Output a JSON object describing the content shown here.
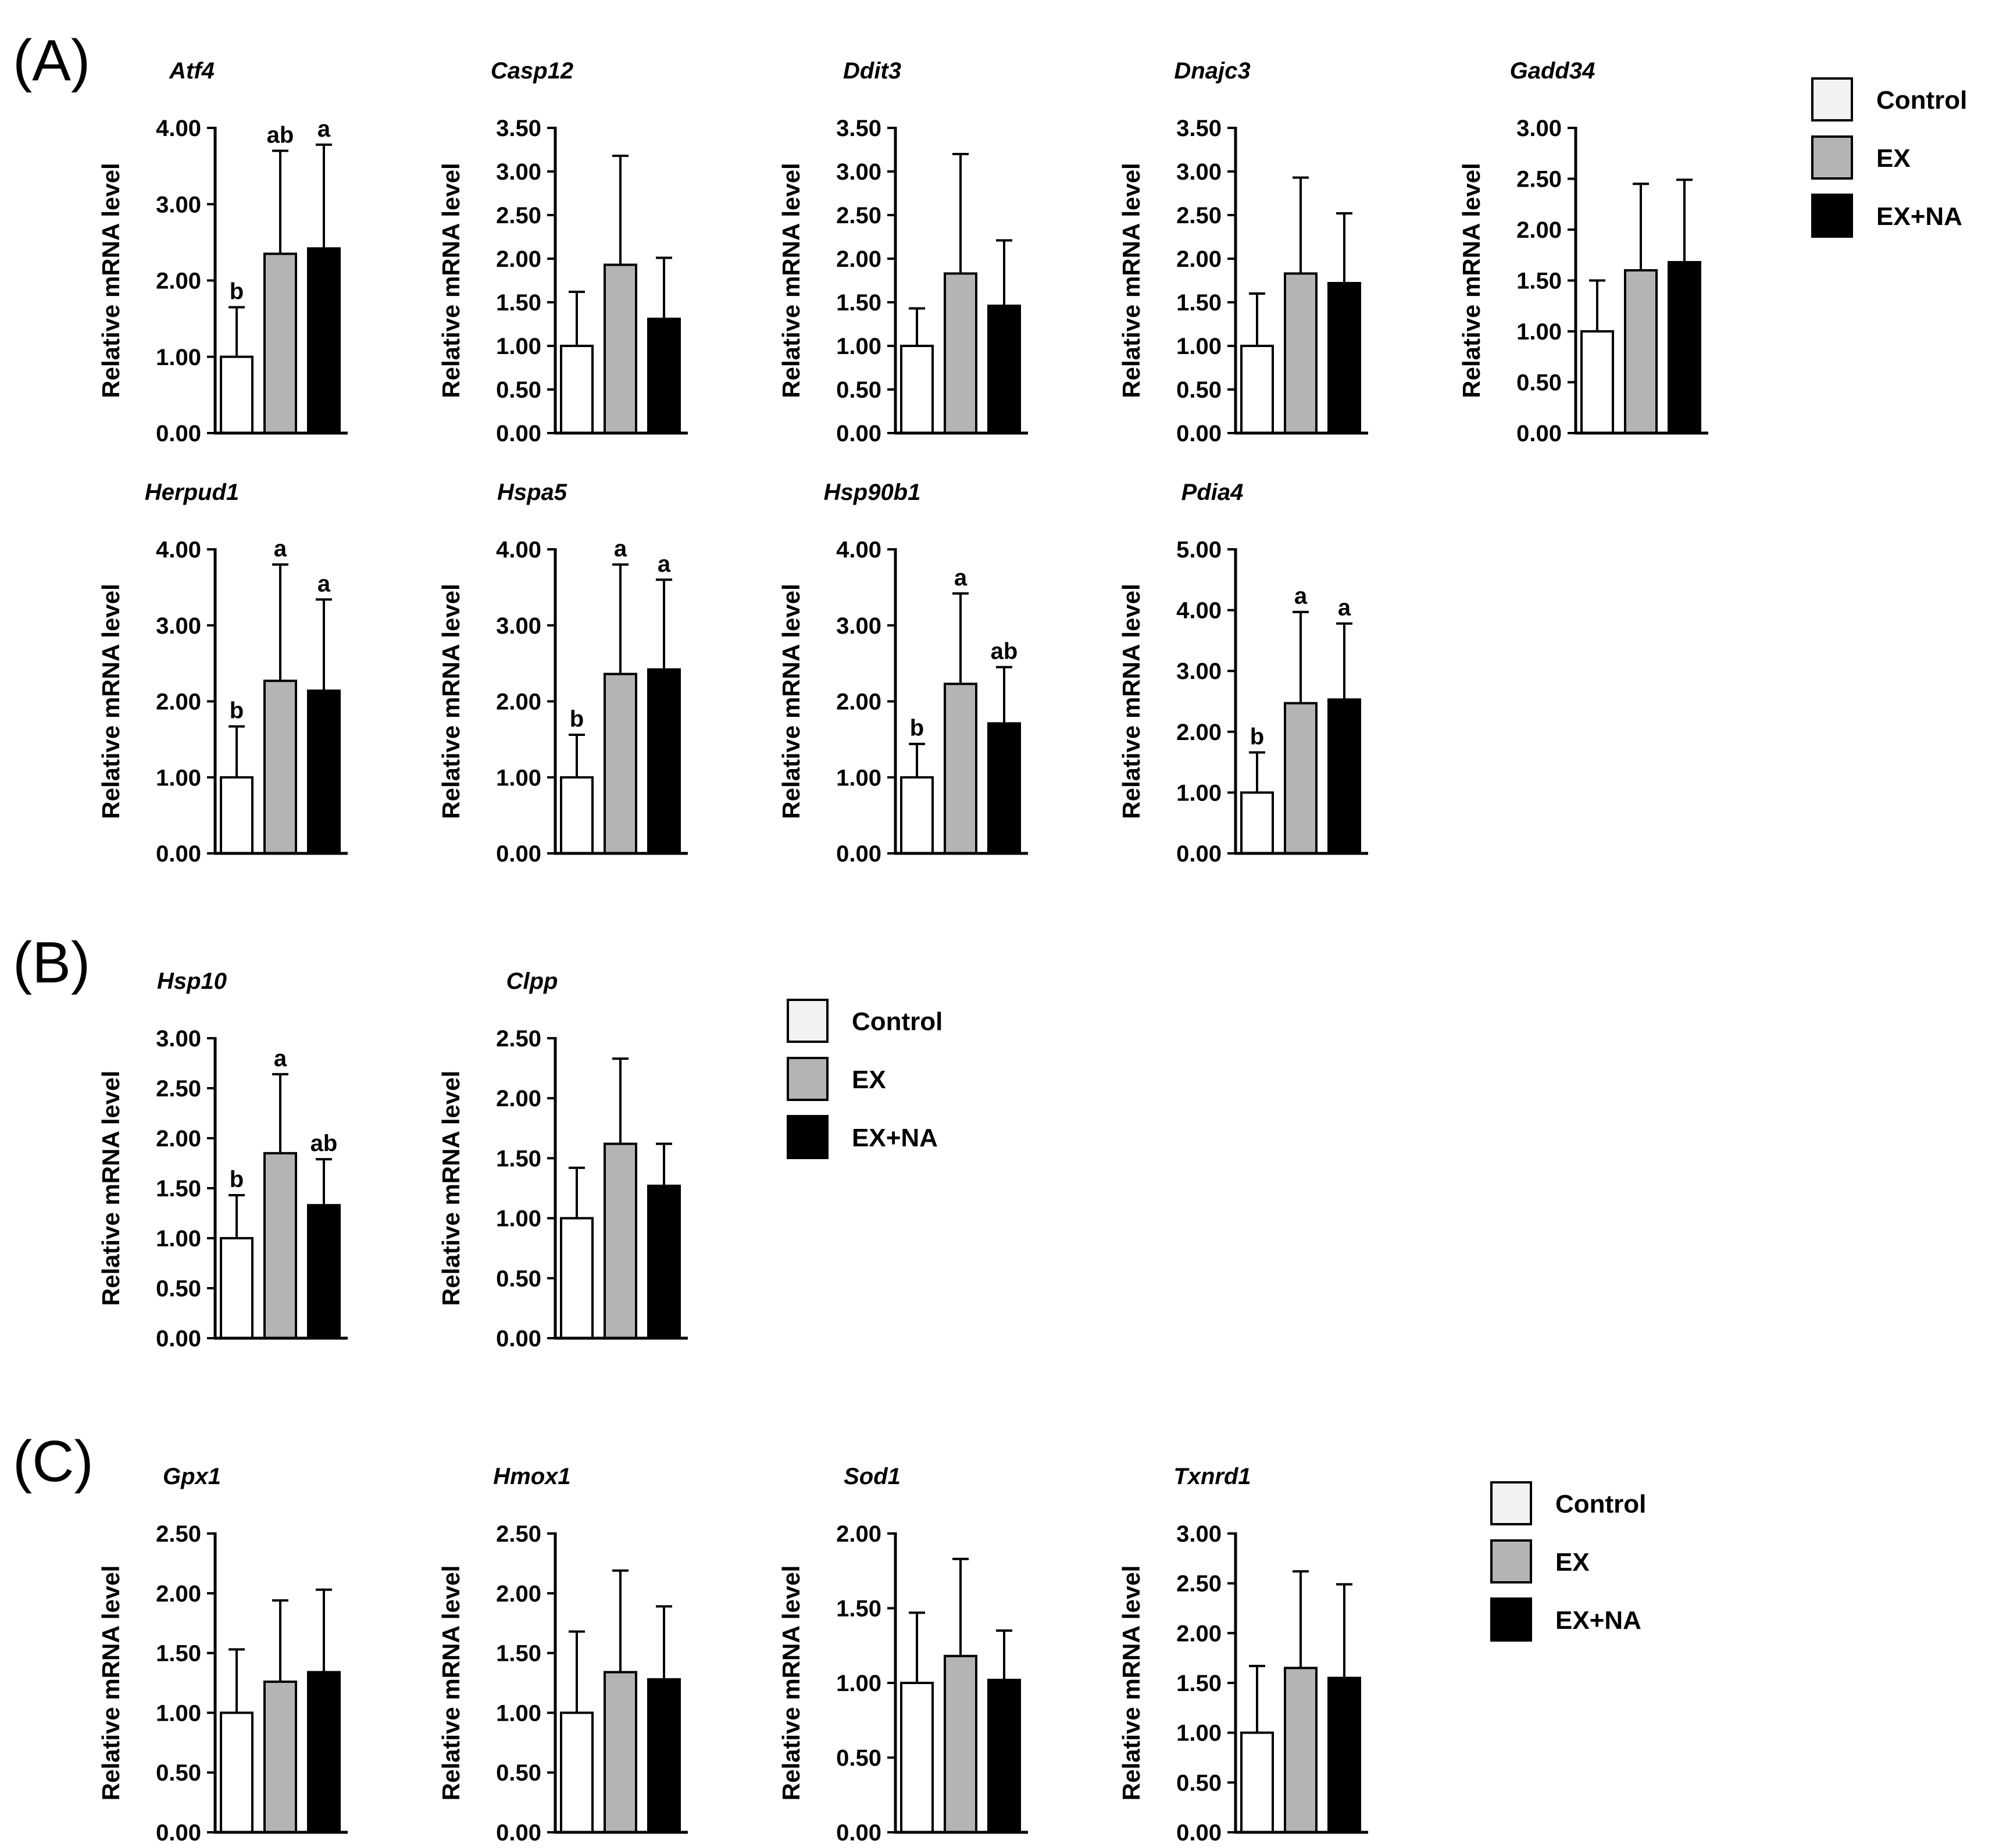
{
  "panels": [
    {
      "label": "(A)",
      "legend_position": "top-right"
    },
    {
      "label": "(B)",
      "legend_position": "right"
    },
    {
      "label": "(C)",
      "legend_position": "right"
    }
  ],
  "legend": {
    "entries": [
      {
        "name": "Control",
        "color": "#ffffff"
      },
      {
        "name": "EX",
        "color": "#b4b4b4"
      },
      {
        "name": "EX+NA",
        "color": "#000000"
      }
    ]
  },
  "chart_data": [
    {
      "panel": "A",
      "type": "bar",
      "title": "Atf4",
      "ylabel": "Relative mRNA level",
      "ylim": [
        0,
        4
      ],
      "yticks": [
        "0.00",
        "1.00",
        "2.00",
        "3.00",
        "4.00"
      ],
      "categories": [
        "Control",
        "EX",
        "EX+NA"
      ],
      "values": [
        1.0,
        2.35,
        2.42
      ],
      "errors": [
        0.65,
        1.35,
        1.36
      ],
      "significance": [
        "b",
        "ab",
        "a"
      ]
    },
    {
      "panel": "A",
      "type": "bar",
      "title": "Casp12",
      "ylabel": "Relative mRNA level",
      "ylim": [
        0,
        3.5
      ],
      "yticks": [
        "0.00",
        "0.50",
        "1.00",
        "1.50",
        "2.00",
        "2.50",
        "3.00",
        "3.50"
      ],
      "categories": [
        "Control",
        "EX",
        "EX+NA"
      ],
      "values": [
        1.0,
        1.93,
        1.31
      ],
      "errors": [
        0.62,
        1.25,
        0.7
      ],
      "significance": [
        "",
        "",
        ""
      ]
    },
    {
      "panel": "A",
      "type": "bar",
      "title": "Ddit3",
      "ylabel": "Relative mRNA level",
      "ylim": [
        0,
        3.5
      ],
      "yticks": [
        "0.00",
        "0.50",
        "1.00",
        "1.50",
        "2.00",
        "2.50",
        "3.00",
        "3.50"
      ],
      "categories": [
        "Control",
        "EX",
        "EX+NA"
      ],
      "values": [
        1.0,
        1.83,
        1.46
      ],
      "errors": [
        0.43,
        1.37,
        0.75
      ],
      "significance": [
        "",
        "",
        ""
      ]
    },
    {
      "panel": "A",
      "type": "bar",
      "title": "Dnajc3",
      "ylabel": "Relative mRNA level",
      "ylim": [
        0,
        3.5
      ],
      "yticks": [
        "0.00",
        "0.50",
        "1.00",
        "1.50",
        "2.00",
        "2.50",
        "3.00",
        "3.50"
      ],
      "categories": [
        "Control",
        "EX",
        "EX+NA"
      ],
      "values": [
        1.0,
        1.83,
        1.72
      ],
      "errors": [
        0.6,
        1.1,
        0.8
      ],
      "significance": [
        "",
        "",
        ""
      ]
    },
    {
      "panel": "A",
      "type": "bar",
      "title": "Gadd34",
      "ylabel": "Relative mRNA level",
      "ylim": [
        0,
        3
      ],
      "yticks": [
        "0.00",
        "0.50",
        "1.00",
        "1.50",
        "2.00",
        "2.50",
        "3.00"
      ],
      "categories": [
        "Control",
        "EX",
        "EX+NA"
      ],
      "values": [
        1.0,
        1.6,
        1.68
      ],
      "errors": [
        0.5,
        0.85,
        0.81
      ],
      "significance": [
        "",
        "",
        ""
      ]
    },
    {
      "panel": "A",
      "type": "bar",
      "title": "Herpud1",
      "ylabel": "Relative mRNA level",
      "ylim": [
        0,
        4
      ],
      "yticks": [
        "0.00",
        "1.00",
        "2.00",
        "3.00",
        "4.00"
      ],
      "categories": [
        "Control",
        "EX",
        "EX+NA"
      ],
      "values": [
        1.0,
        2.27,
        2.14
      ],
      "errors": [
        0.67,
        1.53,
        1.2
      ],
      "significance": [
        "b",
        "a",
        "a"
      ]
    },
    {
      "panel": "A",
      "type": "bar",
      "title": "Hspa5",
      "ylabel": "Relative mRNA level",
      "ylim": [
        0,
        4
      ],
      "yticks": [
        "0.00",
        "1.00",
        "2.00",
        "3.00",
        "4.00"
      ],
      "categories": [
        "Control",
        "EX",
        "EX+NA"
      ],
      "values": [
        1.0,
        2.36,
        2.42
      ],
      "errors": [
        0.56,
        1.44,
        1.18
      ],
      "significance": [
        "b",
        "a",
        "a"
      ]
    },
    {
      "panel": "A",
      "type": "bar",
      "title": "Hsp90b1",
      "ylabel": "Relative mRNA level",
      "ylim": [
        0,
        4
      ],
      "yticks": [
        "0.00",
        "1.00",
        "2.00",
        "3.00",
        "4.00"
      ],
      "categories": [
        "Control",
        "EX",
        "EX+NA"
      ],
      "values": [
        1.0,
        2.23,
        1.71
      ],
      "errors": [
        0.44,
        1.19,
        0.74
      ],
      "significance": [
        "b",
        "a",
        "ab"
      ]
    },
    {
      "panel": "A",
      "type": "bar",
      "title": "Pdia4",
      "ylabel": "Relative mRNA level",
      "ylim": [
        0,
        5
      ],
      "yticks": [
        "0.00",
        "1.00",
        "2.00",
        "3.00",
        "4.00",
        "5.00"
      ],
      "categories": [
        "Control",
        "EX",
        "EX+NA"
      ],
      "values": [
        1.0,
        2.47,
        2.53
      ],
      "errors": [
        0.66,
        1.5,
        1.25
      ],
      "significance": [
        "b",
        "a",
        "a"
      ]
    },
    {
      "panel": "B",
      "type": "bar",
      "title": "Hsp10",
      "ylabel": "Relative mRNA level",
      "ylim": [
        0,
        3
      ],
      "yticks": [
        "0.00",
        "0.50",
        "1.00",
        "1.50",
        "2.00",
        "2.50",
        "3.00"
      ],
      "categories": [
        "Control",
        "EX",
        "EX+NA"
      ],
      "values": [
        1.0,
        1.85,
        1.33
      ],
      "errors": [
        0.43,
        0.79,
        0.46
      ],
      "significance": [
        "b",
        "a",
        "ab"
      ]
    },
    {
      "panel": "B",
      "type": "bar",
      "title": "Clpp",
      "ylabel": "Relative mRNA level",
      "ylim": [
        0,
        2.5
      ],
      "yticks": [
        "0.00",
        "0.50",
        "1.00",
        "1.50",
        "2.00",
        "2.50"
      ],
      "categories": [
        "Control",
        "EX",
        "EX+NA"
      ],
      "values": [
        1.0,
        1.62,
        1.27
      ],
      "errors": [
        0.42,
        0.71,
        0.35
      ],
      "significance": [
        "",
        "",
        ""
      ]
    },
    {
      "panel": "C",
      "type": "bar",
      "title": "Gpx1",
      "ylabel": "Relative mRNA level",
      "ylim": [
        0,
        2.5
      ],
      "yticks": [
        "0.00",
        "0.50",
        "1.00",
        "1.50",
        "2.00",
        "2.50"
      ],
      "categories": [
        "Control",
        "EX",
        "EX+NA"
      ],
      "values": [
        1.0,
        1.26,
        1.34
      ],
      "errors": [
        0.53,
        0.68,
        0.69
      ],
      "significance": [
        "",
        "",
        ""
      ]
    },
    {
      "panel": "C",
      "type": "bar",
      "title": "Hmox1",
      "ylabel": "Relative mRNA level",
      "ylim": [
        0,
        2.5
      ],
      "yticks": [
        "0.00",
        "0.50",
        "1.00",
        "1.50",
        "2.00",
        "2.50"
      ],
      "categories": [
        "Control",
        "EX",
        "EX+NA"
      ],
      "values": [
        1.0,
        1.34,
        1.28
      ],
      "errors": [
        0.68,
        0.85,
        0.61
      ],
      "significance": [
        "",
        "",
        ""
      ]
    },
    {
      "panel": "C",
      "type": "bar",
      "title": "Sod1",
      "ylabel": "Relative mRNA level",
      "ylim": [
        0,
        2
      ],
      "yticks": [
        "0.00",
        "0.50",
        "1.00",
        "1.50",
        "2.00"
      ],
      "categories": [
        "Control",
        "EX",
        "EX+NA"
      ],
      "values": [
        1.0,
        1.18,
        1.02
      ],
      "errors": [
        0.47,
        0.65,
        0.33
      ],
      "significance": [
        "",
        "",
        ""
      ]
    },
    {
      "panel": "C",
      "type": "bar",
      "title": "Txnrd1",
      "ylabel": "Relative mRNA level",
      "ylim": [
        0,
        3
      ],
      "yticks": [
        "0.00",
        "0.50",
        "1.00",
        "1.50",
        "2.00",
        "2.50",
        "3.00"
      ],
      "categories": [
        "Control",
        "EX",
        "EX+NA"
      ],
      "values": [
        1.0,
        1.65,
        1.55
      ],
      "errors": [
        0.67,
        0.97,
        0.94
      ],
      "significance": [
        "",
        "",
        ""
      ]
    }
  ]
}
